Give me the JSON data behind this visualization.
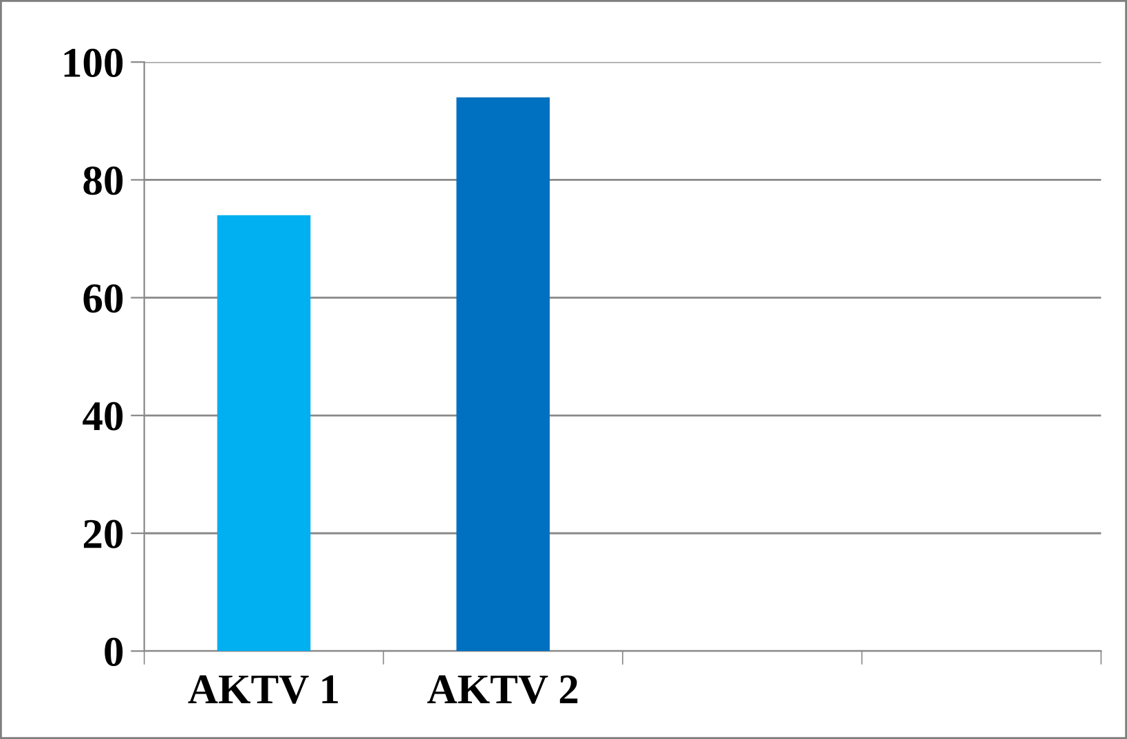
{
  "chart_data": {
    "type": "bar",
    "categories": [
      "AKTV 1",
      "AKTV 2",
      null,
      null
    ],
    "values": [
      74,
      94,
      null,
      null
    ],
    "colors": [
      "#00b0f0",
      "#0070c0",
      null,
      null
    ],
    "ylim": [
      0,
      100
    ],
    "yticks": [
      0,
      20,
      40,
      60,
      80,
      100
    ],
    "grid": "y",
    "legend": false
  }
}
